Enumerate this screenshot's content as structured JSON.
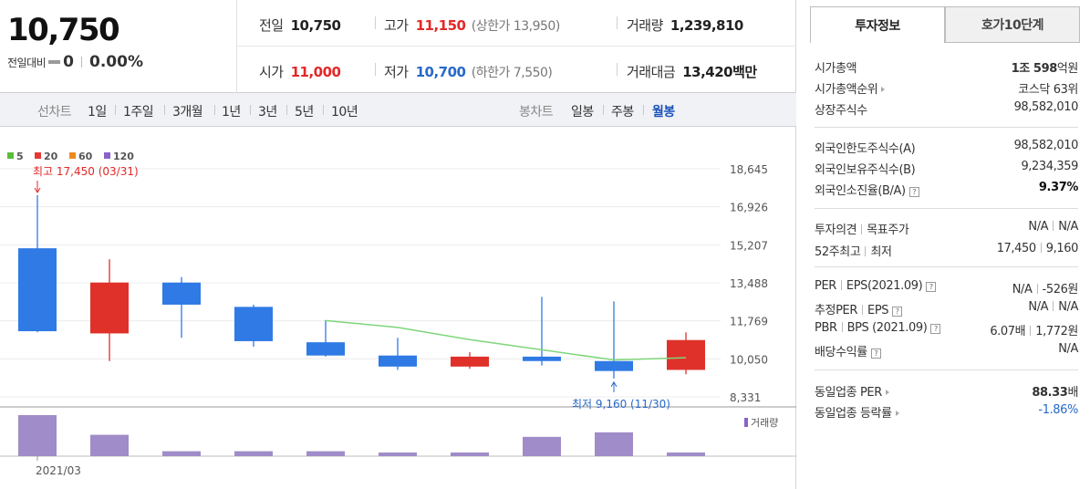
{
  "summary": {
    "price": "10,750",
    "change_label": "전일대비",
    "change_value": "0",
    "change_rate": "0.00%",
    "prev_close_label": "전일",
    "prev_close": "10,750",
    "high_label": "고가",
    "high": "11,150",
    "upper_limit_text": "(상한가 13,950)",
    "volume_label": "거래량",
    "volume": "1,239,810",
    "open_label": "시가",
    "open": "11,000",
    "low_label": "저가",
    "low": "10,700",
    "lower_limit_text": "(하한가 7,550)",
    "amount_label": "거래대금",
    "amount": "13,420",
    "amount_unit": "백만"
  },
  "period_bar": {
    "line_label": "선차트",
    "line_items": [
      "1일",
      "1주일",
      "3개월",
      "1년",
      "3년",
      "5년",
      "10년"
    ],
    "candle_label": "봉차트",
    "candle_items": [
      "일봉",
      "주봉",
      "월봉"
    ],
    "active_candle": "월봉"
  },
  "chart_data": {
    "type": "candlestick",
    "legend": [
      {
        "name": "5",
        "color": "#5cbd3b"
      },
      {
        "name": "20",
        "color": "#e53a33"
      },
      {
        "name": "60",
        "color": "#f08a1f"
      },
      {
        "name": "120",
        "color": "#8a63c9"
      }
    ],
    "y_ticks": [
      "18,645",
      "16,926",
      "15,207",
      "13,488",
      "11,769",
      "10,050",
      "8,331"
    ],
    "ylim": [
      8331,
      18645
    ],
    "x_tick_label": "2021/03",
    "volume_label": "거래량",
    "up_color": "#e0302a",
    "down_color": "#2f7ae5",
    "ma5_color": "#7ed67a",
    "candles": [
      {
        "open": 15050,
        "high": 17450,
        "low": 11250,
        "close": 11300
      },
      {
        "open": 11200,
        "high": 14550,
        "low": 9950,
        "close": 13500
      },
      {
        "open": 13500,
        "high": 13750,
        "low": 11000,
        "close": 12500
      },
      {
        "open": 12400,
        "high": 12500,
        "low": 10600,
        "close": 10850
      },
      {
        "open": 10800,
        "high": 11800,
        "low": 10150,
        "close": 10200
      },
      {
        "open": 10200,
        "high": 11000,
        "low": 9550,
        "close": 9700
      },
      {
        "open": 9700,
        "high": 10350,
        "low": 9600,
        "close": 10150
      },
      {
        "open": 10150,
        "high": 12850,
        "low": 9750,
        "close": 9950
      },
      {
        "open": 9950,
        "high": 12650,
        "low": 9160,
        "close": 9500
      },
      {
        "open": 9550,
        "high": 11250,
        "low": 9350,
        "close": 10900
      }
    ],
    "ma5": [
      null,
      null,
      null,
      null,
      11780,
      11470,
      10920,
      10460,
      10000,
      10100
    ],
    "volume_rel": [
      1.0,
      0.52,
      0.12,
      0.12,
      0.12,
      0.08,
      0.08,
      0.47,
      0.58,
      0.08
    ],
    "high_annotation": "최고 17,450 (03/31)",
    "low_annotation": "최저 9,160 (11/30)"
  },
  "right": {
    "tabs": [
      "투자정보",
      "호가10단계"
    ],
    "market_cap_label": "시가총액",
    "market_cap_main": "1조 598",
    "market_cap_unit": "억원",
    "cap_rank_label": "시가총액순위",
    "cap_rank": "코스닥 63위",
    "shares_label": "상장주식수",
    "shares": "98,582,010",
    "foreign_limit_label": "외국인한도주식수(A)",
    "foreign_limit": "98,582,010",
    "foreign_hold_label": "외국인보유주식수(B)",
    "foreign_hold": "9,234,359",
    "foreign_ratio_label": "외국인소진율(B/A)",
    "foreign_ratio": "9.37%",
    "opinion_label": "투자의견",
    "target_label": "목표주가",
    "opinion": "N/A",
    "target": "N/A",
    "w52_high_label": "52주최고",
    "w52_low_label": "최저",
    "w52_high": "17,450",
    "w52_low": "9,160",
    "per_label": "PER",
    "eps_label": "EPS(2021.09)",
    "per": "N/A",
    "eps": "-526원",
    "est_per_label": "추정PER",
    "est_eps_label": "EPS",
    "est_per": "N/A",
    "est_eps": "N/A",
    "pbr_label": "PBR",
    "bps_label": "BPS (2021.09)",
    "pbr": "6.07배",
    "bps": "1,772원",
    "div_label": "배당수익률",
    "div": "N/A",
    "sector_per_label": "동일업종 PER",
    "sector_per_main": "88.33",
    "sector_per_unit": "배",
    "sector_rate_label": "동일업종 등락률",
    "sector_rate": "-1.86%"
  }
}
